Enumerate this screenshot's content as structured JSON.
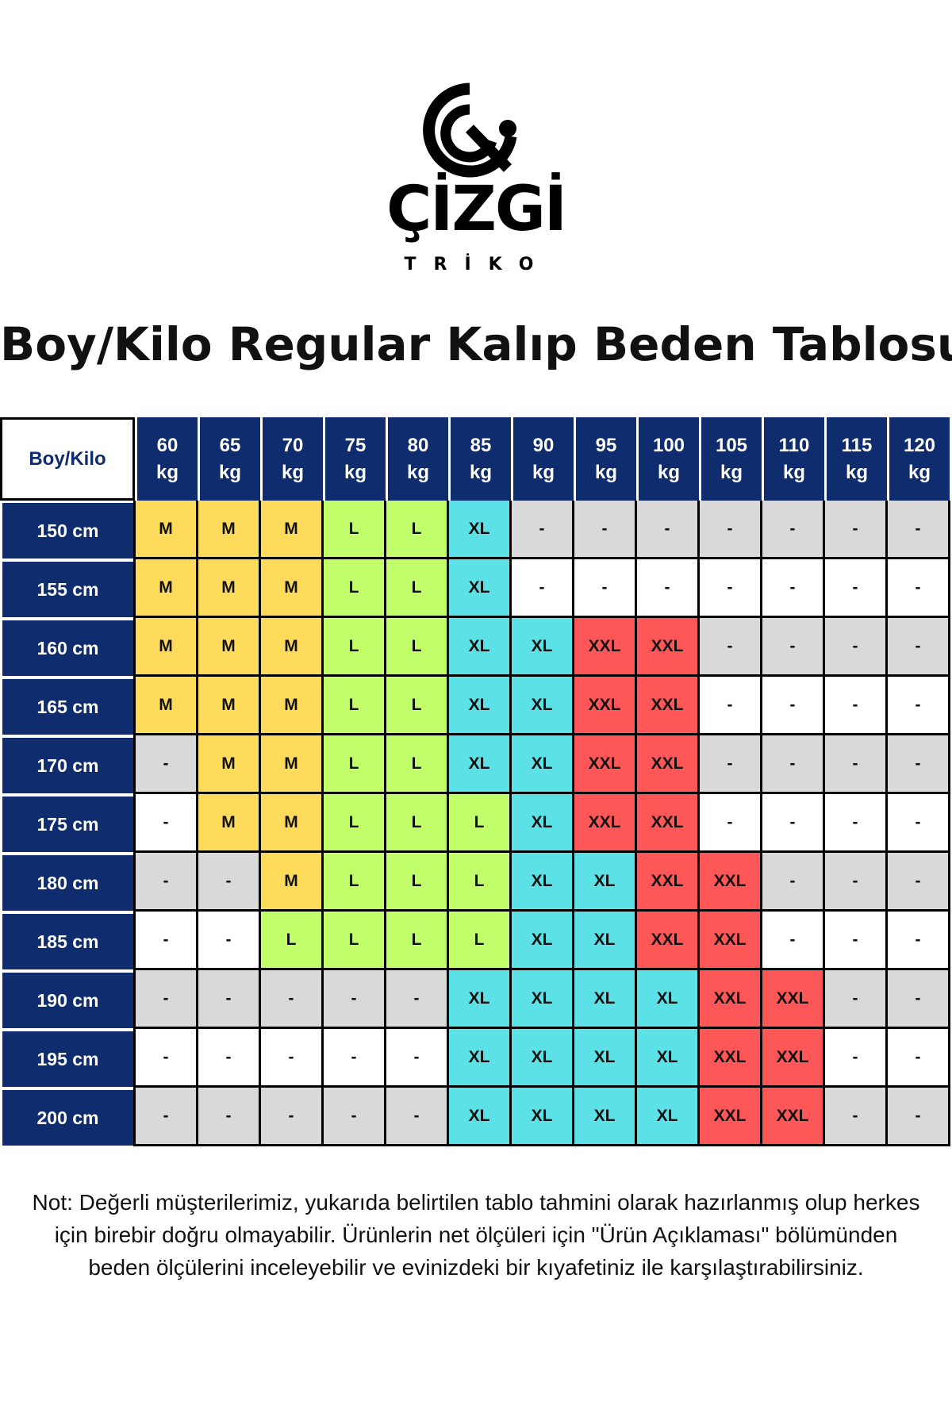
{
  "brand": {
    "logo_text": "ÇİZGİ",
    "logo_subtext": "TRİKO"
  },
  "title": "Boy/Kilo Regular Kalıp Beden Tablosu",
  "colors": {
    "header": "#0e2c6e",
    "M": "#ffdb5c",
    "L": "#c1ff6b",
    "XL": "#5ce1e6",
    "XXL": "#ff5757",
    "empty_gray": "#d9d9d9",
    "empty_white": "#ffffff"
  },
  "table": {
    "corner": "Boy/Kilo",
    "columns": [
      {
        "value": "60",
        "unit": "kg"
      },
      {
        "value": "65",
        "unit": "kg"
      },
      {
        "value": "70",
        "unit": "kg"
      },
      {
        "value": "75",
        "unit": "kg"
      },
      {
        "value": "80",
        "unit": "kg"
      },
      {
        "value": "85",
        "unit": "kg"
      },
      {
        "value": "90",
        "unit": "kg"
      },
      {
        "value": "95",
        "unit": "kg"
      },
      {
        "value": "100",
        "unit": "kg"
      },
      {
        "value": "105",
        "unit": "kg"
      },
      {
        "value": "110",
        "unit": "kg"
      },
      {
        "value": "115",
        "unit": "kg"
      },
      {
        "value": "120",
        "unit": "kg"
      }
    ],
    "rows": [
      {
        "label": "150 cm",
        "cells": [
          "M",
          "M",
          "M",
          "L",
          "L",
          "XL",
          "-",
          "-",
          "-",
          "-",
          "-",
          "-",
          "-"
        ]
      },
      {
        "label": "155 cm",
        "cells": [
          "M",
          "M",
          "M",
          "L",
          "L",
          "XL",
          "-",
          "-",
          "-",
          "-",
          "-",
          "-",
          "-"
        ]
      },
      {
        "label": "160 cm",
        "cells": [
          "M",
          "M",
          "M",
          "L",
          "L",
          "XL",
          "XL",
          "XXL",
          "XXL",
          "-",
          "-",
          "-",
          "-"
        ]
      },
      {
        "label": "165 cm",
        "cells": [
          "M",
          "M",
          "M",
          "L",
          "L",
          "XL",
          "XL",
          "XXL",
          "XXL",
          "-",
          "-",
          "-",
          "-"
        ]
      },
      {
        "label": "170 cm",
        "cells": [
          "-",
          "M",
          "M",
          "L",
          "L",
          "XL",
          "XL",
          "XXL",
          "XXL",
          "-",
          "-",
          "-",
          "-"
        ]
      },
      {
        "label": "175 cm",
        "cells": [
          "-",
          "M",
          "M",
          "L",
          "L",
          "L",
          "XL",
          "XXL",
          "XXL",
          "-",
          "-",
          "-",
          "-"
        ]
      },
      {
        "label": "180 cm",
        "cells": [
          "-",
          "-",
          "M",
          "L",
          "L",
          "L",
          "XL",
          "XL",
          "XXL",
          "XXL",
          "-",
          "-",
          "-"
        ]
      },
      {
        "label": "185 cm",
        "cells": [
          "-",
          "-",
          "L",
          "L",
          "L",
          "L",
          "XL",
          "XL",
          "XXL",
          "XXL",
          "-",
          "-",
          "-"
        ]
      },
      {
        "label": "190 cm",
        "cells": [
          "-",
          "-",
          "-",
          "-",
          "-",
          "XL",
          "XL",
          "XL",
          "XL",
          "XXL",
          "XXL",
          "-",
          "-"
        ]
      },
      {
        "label": "195 cm",
        "cells": [
          "-",
          "-",
          "-",
          "-",
          "-",
          "XL",
          "XL",
          "XL",
          "XL",
          "XXL",
          "XXL",
          "-",
          "-"
        ]
      },
      {
        "label": "200 cm",
        "cells": [
          "-",
          "-",
          "-",
          "-",
          "-",
          "XL",
          "XL",
          "XL",
          "XL",
          "XXL",
          "XXL",
          "-",
          "-"
        ]
      }
    ]
  },
  "note": "Not: Değerli müşterilerimiz, yukarıda belirtilen tablo tahmini olarak hazırlanmış olup herkes için birebir doğru olmayabilir. Ürünlerin net ölçüleri için \"Ürün Açıklaması\" bölümünden beden ölçülerini inceleyebilir ve evinizdeki bir kıyafetiniz ile karşılaştırabilirsiniz."
}
